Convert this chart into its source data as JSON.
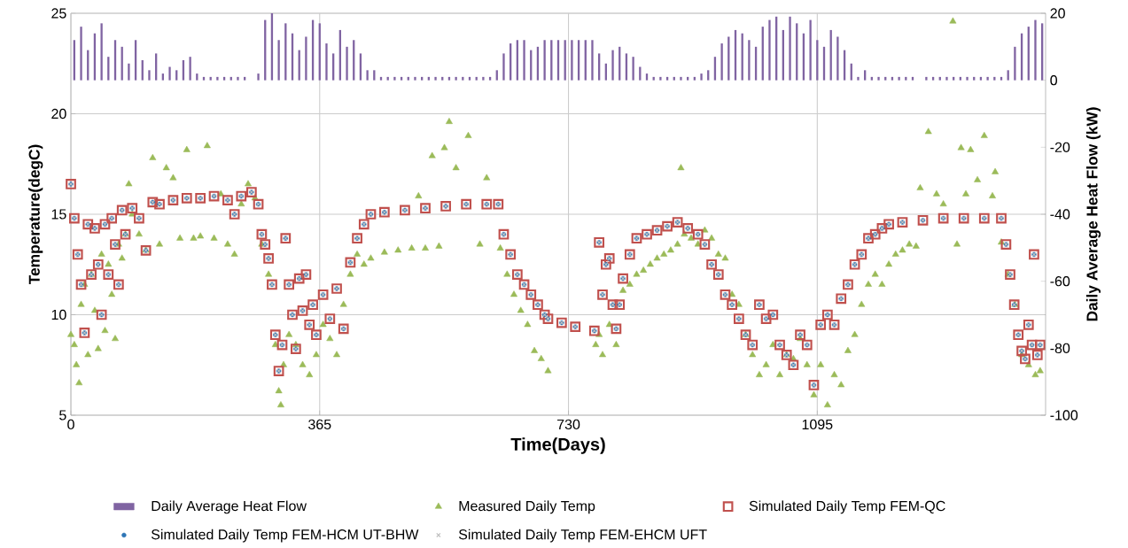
{
  "chart_data": {
    "type": "scatter",
    "xlabel": "Time(Days)",
    "ylabel": "Temperature(degC)",
    "y2label": "Daily Average Heat Flow (kW)",
    "xlim": [
      0,
      1430
    ],
    "xticks": [
      0,
      365,
      730,
      1095
    ],
    "ylim": [
      5,
      25
    ],
    "yticks": [
      5,
      10,
      15,
      20,
      25
    ],
    "y2lim": [
      -100,
      20
    ],
    "y2ticks": [
      -100,
      -80,
      -60,
      -40,
      -20,
      0,
      20
    ],
    "grid": true,
    "legend": "bottom",
    "series": [
      {
        "name": "Daily Average Heat Flow",
        "type": "bar",
        "axis": "y2",
        "color": "#8064a2",
        "x": [
          5,
          15,
          25,
          35,
          45,
          55,
          65,
          75,
          85,
          95,
          105,
          115,
          125,
          135,
          145,
          155,
          165,
          175,
          185,
          195,
          205,
          215,
          225,
          235,
          245,
          255,
          265,
          275,
          285,
          295,
          305,
          315,
          325,
          335,
          345,
          355,
          365,
          375,
          385,
          395,
          405,
          415,
          425,
          435,
          445,
          455,
          465,
          475,
          485,
          495,
          505,
          515,
          525,
          535,
          545,
          555,
          565,
          575,
          585,
          595,
          605,
          615,
          625,
          635,
          645,
          655,
          665,
          675,
          685,
          695,
          705,
          715,
          725,
          735,
          745,
          755,
          765,
          775,
          785,
          795,
          805,
          815,
          825,
          835,
          845,
          855,
          865,
          875,
          885,
          895,
          905,
          915,
          925,
          935,
          945,
          955,
          965,
          975,
          985,
          995,
          1005,
          1015,
          1025,
          1035,
          1045,
          1055,
          1065,
          1075,
          1085,
          1095,
          1105,
          1115,
          1125,
          1135,
          1145,
          1155,
          1165,
          1175,
          1185,
          1195,
          1205,
          1215,
          1225,
          1235,
          1245,
          1255,
          1265,
          1275,
          1285,
          1295,
          1305,
          1315,
          1325,
          1335,
          1345,
          1355,
          1365,
          1375,
          1385,
          1395,
          1405,
          1415,
          1425
        ],
        "values": [
          12,
          16,
          9,
          14,
          17,
          7,
          12,
          10,
          5,
          12,
          6,
          3,
          8,
          2,
          4,
          3,
          6,
          7,
          2,
          1,
          1,
          1,
          1,
          1,
          1,
          1,
          null,
          2,
          18,
          20,
          12,
          17,
          14,
          9,
          13,
          18,
          17,
          11,
          8,
          15,
          10,
          12,
          8,
          3,
          3,
          1,
          1,
          1,
          1,
          1,
          1,
          1,
          1,
          1,
          1,
          1,
          1,
          1,
          1,
          1,
          1,
          1,
          3,
          8,
          11,
          12,
          12,
          9,
          10,
          12,
          12,
          12,
          12,
          12,
          12,
          12,
          12,
          8,
          5,
          9,
          10,
          8,
          7,
          4,
          2,
          1,
          1,
          1,
          1,
          1,
          1,
          1,
          2,
          3,
          7,
          11,
          13,
          15,
          14,
          12,
          10,
          16,
          18,
          19,
          15,
          19,
          17,
          14,
          18,
          12,
          10,
          15,
          13,
          9,
          5,
          1,
          3,
          1,
          1,
          1,
          1,
          1,
          1,
          1,
          null,
          1,
          1,
          1,
          1,
          1,
          1,
          1,
          1,
          1,
          1,
          1,
          1,
          3,
          10,
          14,
          16,
          18,
          17
        ]
      },
      {
        "name": "Measured Daily Temp",
        "color": "#9bbb59",
        "marker": "triangle",
        "x": [
          0,
          5,
          8,
          12,
          15,
          20,
          25,
          30,
          35,
          40,
          45,
          50,
          55,
          60,
          65,
          70,
          75,
          80,
          85,
          90,
          100,
          110,
          120,
          130,
          140,
          150,
          160,
          170,
          180,
          190,
          200,
          210,
          220,
          230,
          240,
          250,
          260,
          270,
          280,
          290,
          300,
          305,
          308,
          312,
          320,
          330,
          340,
          350,
          360,
          370,
          380,
          390,
          400,
          410,
          420,
          430,
          440,
          460,
          480,
          500,
          510,
          520,
          530,
          540,
          548,
          555,
          565,
          583,
          600,
          610,
          630,
          640,
          650,
          660,
          670,
          680,
          690,
          700,
          770,
          775,
          780,
          790,
          800,
          810,
          820,
          830,
          840,
          850,
          860,
          870,
          880,
          890,
          895,
          900,
          910,
          920,
          930,
          940,
          950,
          960,
          970,
          980,
          990,
          1000,
          1010,
          1020,
          1030,
          1040,
          1050,
          1060,
          1070,
          1080,
          1090,
          1100,
          1110,
          1120,
          1130,
          1140,
          1150,
          1160,
          1170,
          1180,
          1190,
          1200,
          1210,
          1220,
          1230,
          1240,
          1246,
          1258,
          1270,
          1280,
          1294,
          1300,
          1306,
          1313,
          1320,
          1330,
          1340,
          1352,
          1356,
          1365,
          1375,
          1385,
          1395,
          1405,
          1415,
          1422
        ],
        "values": [
          9.0,
          8.5,
          7.5,
          6.6,
          10.5,
          11.5,
          8.0,
          12.0,
          10.2,
          8.3,
          13.0,
          9.2,
          12.5,
          11.0,
          8.8,
          13.5,
          12.8,
          14.0,
          16.5,
          15.0,
          14.0,
          13.2,
          17.8,
          13.5,
          17.3,
          16.8,
          13.8,
          18.2,
          13.8,
          13.9,
          18.4,
          13.8,
          16.0,
          13.5,
          13.0,
          15.5,
          16.5,
          15.8,
          13.5,
          12.0,
          8.5,
          6.2,
          5.5,
          7.5,
          9.0,
          8.5,
          7.5,
          7.0,
          8.0,
          9.5,
          8.8,
          8.0,
          10.5,
          12.0,
          13.0,
          12.5,
          12.8,
          13.1,
          13.2,
          13.3,
          15.9,
          13.3,
          17.9,
          13.4,
          18.3,
          19.6,
          17.3,
          18.9,
          13.5,
          16.8,
          13.3,
          12.0,
          11.0,
          10.2,
          9.5,
          8.2,
          7.8,
          7.2,
          8.5,
          9.0,
          8.0,
          9.5,
          8.5,
          11.2,
          11.5,
          12.0,
          12.2,
          12.5,
          12.8,
          13.0,
          13.2,
          13.5,
          17.3,
          14.0,
          13.8,
          13.5,
          14.2,
          13.8,
          13.0,
          12.8,
          11.0,
          10.5,
          9.0,
          8.0,
          7.0,
          7.5,
          8.5,
          7.0,
          8.0,
          7.8,
          8.8,
          7.5,
          6.0,
          7.5,
          5.5,
          7.0,
          6.5,
          8.2,
          9.0,
          10.5,
          11.5,
          12.0,
          11.5,
          12.5,
          13.0,
          13.2,
          13.5,
          13.4,
          16.3,
          19.1,
          16.0,
          15.5,
          24.6,
          13.5,
          18.3,
          16.0,
          18.2,
          16.7,
          18.9,
          15.9,
          17.1,
          13.6,
          12.0,
          10.5,
          8.0,
          7.5,
          7.0,
          7.2
        ]
      },
      {
        "name": "Simulated Daily Temp FEM-QC",
        "color": "#c0504d",
        "marker": "square",
        "x": [
          0,
          5,
          10,
          15,
          20,
          25,
          30,
          35,
          40,
          45,
          50,
          55,
          60,
          65,
          70,
          75,
          80,
          90,
          100,
          110,
          120,
          130,
          150,
          170,
          190,
          210,
          230,
          240,
          250,
          265,
          275,
          280,
          285,
          290,
          295,
          300,
          305,
          310,
          315,
          320,
          325,
          330,
          335,
          340,
          345,
          350,
          355,
          360,
          370,
          380,
          390,
          400,
          410,
          420,
          430,
          440,
          460,
          490,
          520,
          550,
          580,
          610,
          627,
          635,
          645,
          655,
          665,
          675,
          685,
          695,
          700,
          720,
          740,
          768,
          775,
          780,
          785,
          790,
          795,
          800,
          805,
          810,
          820,
          830,
          845,
          860,
          875,
          890,
          905,
          920,
          930,
          940,
          950,
          960,
          970,
          980,
          990,
          1000,
          1010,
          1020,
          1030,
          1040,
          1050,
          1060,
          1070,
          1080,
          1090,
          1100,
          1110,
          1120,
          1130,
          1140,
          1150,
          1160,
          1170,
          1180,
          1190,
          1200,
          1220,
          1250,
          1280,
          1310,
          1340,
          1365,
          1372,
          1378,
          1384,
          1390,
          1395,
          1400,
          1405,
          1410,
          1413,
          1418,
          1422
        ],
        "values": [
          16.5,
          14.8,
          13.0,
          11.5,
          9.1,
          14.5,
          12.0,
          14.3,
          12.5,
          10.0,
          14.5,
          12.0,
          14.8,
          13.5,
          11.5,
          15.2,
          14.0,
          15.3,
          14.8,
          13.2,
          15.6,
          15.5,
          15.7,
          15.8,
          15.8,
          15.9,
          15.7,
          15.0,
          15.9,
          16.1,
          15.5,
          14.0,
          13.5,
          12.8,
          11.5,
          9.0,
          7.2,
          8.5,
          13.8,
          11.5,
          10.0,
          8.3,
          11.8,
          10.2,
          12.0,
          9.5,
          10.5,
          9.0,
          11.0,
          9.8,
          11.3,
          9.3,
          12.6,
          13.8,
          14.5,
          15.0,
          15.1,
          15.2,
          15.3,
          15.4,
          15.5,
          15.5,
          15.5,
          14.0,
          13.0,
          12.0,
          11.5,
          11.0,
          10.5,
          10.0,
          9.8,
          9.6,
          9.4,
          9.2,
          13.6,
          11.0,
          12.5,
          12.8,
          10.5,
          9.3,
          10.5,
          11.8,
          13.0,
          13.8,
          14.0,
          14.2,
          14.4,
          14.6,
          14.3,
          14.0,
          13.5,
          12.5,
          12.0,
          11.0,
          10.5,
          9.8,
          9.0,
          8.5,
          10.5,
          9.8,
          10.0,
          8.5,
          8.0,
          7.5,
          9.0,
          8.5,
          6.5,
          9.5,
          10.0,
          9.5,
          10.8,
          11.5,
          12.5,
          13.0,
          13.8,
          14.0,
          14.3,
          14.5,
          14.6,
          14.7,
          14.8,
          14.8,
          14.8,
          14.8,
          13.5,
          12.0,
          10.5,
          9.0,
          8.2,
          7.8,
          9.5,
          8.5,
          13.0,
          8.0,
          8.5
        ]
      },
      {
        "name": "Simulated Daily Temp FEM-HCM UT-BHW",
        "color": "#2e75b6",
        "marker": "circle",
        "x": [
          0,
          5,
          10,
          15,
          20,
          25,
          30,
          35,
          40,
          45,
          50,
          55,
          60,
          65,
          70,
          75,
          80,
          90,
          100,
          110,
          120,
          130,
          150,
          170,
          190,
          210,
          230,
          240,
          250,
          265,
          275,
          280,
          285,
          290,
          295,
          300,
          305,
          310,
          315,
          320,
          325,
          330,
          335,
          340,
          345,
          350,
          355,
          360,
          370,
          380,
          390,
          400,
          410,
          420,
          430,
          440,
          460,
          490,
          520,
          550,
          580,
          610,
          627,
          635,
          645,
          655,
          665,
          675,
          685,
          695,
          700,
          720,
          740,
          768,
          775,
          780,
          785,
          790,
          795,
          800,
          805,
          810,
          820,
          830,
          845,
          860,
          875,
          890,
          905,
          920,
          930,
          940,
          950,
          960,
          970,
          980,
          990,
          1000,
          1010,
          1020,
          1030,
          1040,
          1050,
          1060,
          1070,
          1080,
          1090,
          1100,
          1110,
          1120,
          1130,
          1140,
          1150,
          1160,
          1170,
          1180,
          1190,
          1200,
          1220,
          1250,
          1280,
          1310,
          1340,
          1365,
          1372,
          1378,
          1384,
          1390,
          1395,
          1400,
          1405,
          1410,
          1413,
          1418,
          1422
        ],
        "values": [
          16.5,
          14.8,
          13.0,
          11.5,
          9.1,
          14.5,
          12.0,
          14.3,
          12.5,
          10.0,
          14.5,
          12.0,
          14.8,
          13.5,
          11.5,
          15.2,
          14.0,
          15.3,
          14.8,
          13.2,
          15.6,
          15.5,
          15.7,
          15.8,
          15.8,
          15.9,
          15.7,
          15.0,
          15.9,
          16.1,
          15.5,
          14.0,
          13.5,
          12.8,
          11.5,
          9.0,
          7.2,
          8.5,
          13.8,
          11.5,
          10.0,
          8.3,
          11.8,
          10.2,
          12.0,
          9.5,
          10.5,
          9.0,
          11.0,
          9.8,
          11.3,
          9.3,
          12.6,
          13.8,
          14.5,
          15.0,
          15.1,
          15.2,
          15.3,
          15.4,
          15.5,
          15.5,
          15.5,
          14.0,
          13.0,
          12.0,
          11.5,
          11.0,
          10.5,
          10.0,
          9.8,
          9.6,
          9.4,
          9.2,
          13.6,
          11.0,
          12.5,
          12.8,
          10.5,
          9.3,
          10.5,
          11.8,
          13.0,
          13.8,
          14.0,
          14.2,
          14.4,
          14.6,
          14.3,
          14.0,
          13.5,
          12.5,
          12.0,
          11.0,
          10.5,
          9.8,
          9.0,
          8.5,
          10.5,
          9.8,
          10.0,
          8.5,
          8.0,
          7.5,
          9.0,
          8.5,
          6.5,
          9.5,
          10.0,
          9.5,
          10.8,
          11.5,
          12.5,
          13.0,
          13.8,
          14.0,
          14.3,
          14.5,
          14.6,
          14.7,
          14.8,
          14.8,
          14.8,
          14.8,
          13.5,
          12.0,
          10.5,
          9.0,
          8.2,
          7.8,
          9.5,
          8.5,
          13.0,
          8.0,
          8.5
        ]
      },
      {
        "name": "Simulated Daily Temp FEM-EHCM UFT",
        "color": "#bfbfbf",
        "marker": "cross",
        "x": [
          0,
          5,
          10,
          15,
          20,
          25,
          30,
          35,
          40,
          45,
          50,
          55,
          60,
          65,
          70,
          75,
          80,
          90,
          100,
          110,
          120,
          130,
          150,
          170,
          190,
          210,
          230,
          240,
          250,
          265,
          275,
          280,
          285,
          290,
          295,
          300,
          305,
          310,
          315,
          320,
          325,
          330,
          335,
          340,
          345,
          350,
          355,
          360,
          370,
          380,
          390,
          400,
          410,
          420,
          430,
          440,
          460,
          490,
          520,
          550,
          580,
          610,
          627,
          635,
          645,
          655,
          665,
          675,
          685,
          695,
          700,
          720,
          740,
          768,
          775,
          780,
          785,
          790,
          795,
          800,
          805,
          810,
          820,
          830,
          845,
          860,
          875,
          890,
          905,
          920,
          930,
          940,
          950,
          960,
          970,
          980,
          990,
          1000,
          1010,
          1020,
          1030,
          1040,
          1050,
          1060,
          1070,
          1080,
          1090,
          1100,
          1110,
          1120,
          1130,
          1140,
          1150,
          1160,
          1170,
          1180,
          1190,
          1200,
          1220,
          1250,
          1280,
          1310,
          1340,
          1365,
          1372,
          1378,
          1384,
          1390,
          1395,
          1400,
          1405,
          1410,
          1413,
          1418,
          1422
        ],
        "values": [
          16.5,
          14.8,
          13.0,
          11.5,
          9.1,
          14.5,
          12.0,
          14.3,
          12.5,
          10.0,
          14.5,
          12.0,
          14.8,
          13.5,
          11.5,
          15.2,
          14.0,
          15.3,
          14.8,
          13.2,
          15.6,
          15.5,
          15.7,
          15.8,
          15.8,
          15.9,
          15.7,
          15.0,
          15.9,
          16.1,
          15.5,
          14.0,
          13.5,
          12.8,
          11.5,
          9.0,
          7.2,
          8.5,
          13.8,
          11.5,
          10.0,
          8.3,
          11.8,
          10.2,
          12.0,
          9.5,
          10.5,
          9.0,
          11.0,
          9.8,
          11.3,
          9.3,
          12.6,
          13.8,
          14.5,
          15.0,
          15.1,
          15.2,
          15.3,
          15.4,
          15.5,
          15.5,
          15.5,
          14.0,
          13.0,
          12.0,
          11.5,
          11.0,
          10.5,
          10.0,
          9.8,
          9.6,
          9.4,
          9.2,
          13.6,
          11.0,
          12.5,
          12.8,
          10.5,
          9.3,
          10.5,
          11.8,
          13.0,
          13.8,
          14.0,
          14.2,
          14.4,
          14.6,
          14.3,
          14.0,
          13.5,
          12.5,
          12.0,
          11.0,
          10.5,
          9.8,
          9.0,
          8.5,
          10.5,
          9.8,
          10.0,
          8.5,
          8.0,
          7.5,
          9.0,
          8.5,
          6.5,
          9.5,
          10.0,
          9.5,
          10.8,
          11.5,
          12.5,
          13.0,
          13.8,
          14.0,
          14.3,
          14.5,
          14.6,
          14.7,
          14.8,
          14.8,
          14.8,
          14.8,
          13.5,
          12.0,
          10.5,
          9.0,
          8.2,
          7.8,
          9.5,
          8.5,
          13.0,
          8.0,
          8.5
        ]
      }
    ]
  }
}
